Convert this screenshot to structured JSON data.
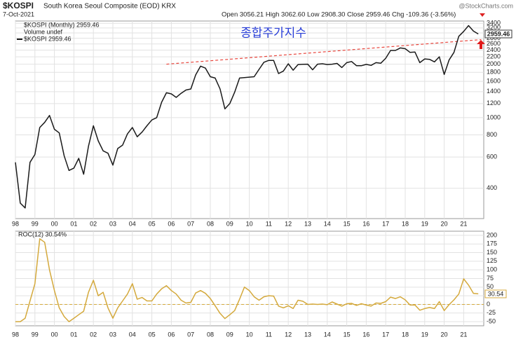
{
  "header": {
    "symbol": "$KOSPI",
    "description": "South Korea Seoul Composite (EOD) KRX",
    "date": "7-Oct-2021",
    "quote": "Open 3056.21 High 3062.60 Low 2908.30 Close 2959.46 Chg -109.36 (-3.56%)",
    "source": "@StockCharts.com",
    "legend_main": "$KOSPI (Monthly) 2959.46",
    "legend_volume": "Volume undef",
    "legend_line": "$KOSPI 2959.46",
    "annotation": "종합주가지수",
    "price_tag": "2959.46",
    "roc_legend": "ROC(12) 30.54%",
    "roc_tag": "30.54"
  },
  "chart_data": [
    {
      "type": "line",
      "color": "#1a1a1a",
      "log_scale": true,
      "grid": true,
      "xlim": [
        1998,
        2022.03
      ],
      "ylim": [
        270,
        3500
      ],
      "x": [
        1998,
        1998.25,
        1998.5,
        1998.75,
        1999,
        1999.25,
        1999.5,
        1999.75,
        2000,
        2000.25,
        2000.5,
        2000.75,
        2001,
        2001.25,
        2001.5,
        2001.75,
        2002,
        2002.25,
        2002.5,
        2002.75,
        2003,
        2003.25,
        2003.5,
        2003.75,
        2004,
        2004.25,
        2004.5,
        2004.75,
        2005,
        2005.25,
        2005.5,
        2005.75,
        2006,
        2006.25,
        2006.5,
        2006.75,
        2007,
        2007.25,
        2007.5,
        2007.75,
        2008,
        2008.25,
        2008.5,
        2008.75,
        2009,
        2009.25,
        2009.5,
        2009.75,
        2010,
        2010.25,
        2010.5,
        2010.75,
        2011,
        2011.25,
        2011.5,
        2011.75,
        2012,
        2012.25,
        2012.5,
        2012.75,
        2013,
        2013.25,
        2013.5,
        2013.75,
        2014,
        2014.25,
        2014.5,
        2014.75,
        2015,
        2015.25,
        2015.5,
        2015.75,
        2016,
        2016.25,
        2016.5,
        2016.75,
        2017,
        2017.25,
        2017.5,
        2017.75,
        2018,
        2018.25,
        2018.5,
        2018.75,
        2019,
        2019.25,
        2019.5,
        2019.75,
        2020,
        2020.25,
        2020.5,
        2020.75,
        2021,
        2021.25,
        2021.5,
        2021.75
      ],
      "values": [
        560,
        330,
        310,
        560,
        620,
        880,
        940,
        1028,
        860,
        820,
        610,
        504,
        520,
        590,
        480,
        690,
        900,
        740,
        650,
        630,
        540,
        670,
        700,
        810,
        880,
        780,
        830,
        900,
        970,
        1000,
        1220,
        1380,
        1360,
        1300,
        1370,
        1430,
        1450,
        1740,
        1950,
        1900,
        1700,
        1670,
        1450,
        1120,
        1200,
        1390,
        1670,
        1680,
        1690,
        1700,
        1870,
        2050,
        2100,
        2100,
        1770,
        1830,
        2010,
        1850,
        1990,
        1997,
        2000,
        1860,
        2000,
        2010,
        1990,
        2000,
        2020,
        1915,
        2040,
        2070,
        1960,
        1960,
        1995,
        1970,
        2040,
        2026,
        2160,
        2390,
        2390,
        2470,
        2445,
        2330,
        2340,
        2040,
        2140,
        2130,
        2060,
        2200,
        1750,
        2110,
        2330,
        2870,
        3060,
        3300,
        3070,
        2959.46
      ],
      "trendline": {
        "x": [
          2005.75,
          2021.9
        ],
        "y": [
          2000,
          2750
        ],
        "color": "#e8453c"
      },
      "yticks": [
        400,
        600,
        800,
        1000,
        1200,
        1400,
        1600,
        1800,
        2000,
        2200,
        2400,
        2600,
        2800,
        3000,
        3200,
        3400
      ],
      "xticks": [
        {
          "value": 1998,
          "label": "98"
        },
        {
          "value": 1999,
          "label": "99"
        },
        {
          "value": 2000,
          "label": "00"
        },
        {
          "value": 2001,
          "label": "01"
        },
        {
          "value": 2002,
          "label": "02"
        },
        {
          "value": 2003,
          "label": "03"
        },
        {
          "value": 2004,
          "label": "04"
        },
        {
          "value": 2005,
          "label": "05"
        },
        {
          "value": 2006,
          "label": "06"
        },
        {
          "value": 2007,
          "label": "07"
        },
        {
          "value": 2008,
          "label": "08"
        },
        {
          "value": 2009,
          "label": "09"
        },
        {
          "value": 2010,
          "label": "10"
        },
        {
          "value": 2011,
          "label": "11"
        },
        {
          "value": 2012,
          "label": "12"
        },
        {
          "value": 2013,
          "label": "13"
        },
        {
          "value": 2014,
          "label": "14"
        },
        {
          "value": 2015,
          "label": "15"
        },
        {
          "value": 2016,
          "label": "16"
        },
        {
          "value": 2017,
          "label": "17"
        },
        {
          "value": 2018,
          "label": "18"
        },
        {
          "value": 2019,
          "label": "19"
        },
        {
          "value": 2020,
          "label": "20"
        },
        {
          "value": 2021,
          "label": "21"
        }
      ]
    },
    {
      "type": "line",
      "color": "#d4a93c",
      "log_scale": false,
      "grid": true,
      "zero_line": true,
      "xlim": [
        1998,
        2022.03
      ],
      "ylim": [
        -62,
        212
      ],
      "x": [
        1998,
        1998.25,
        1998.5,
        1998.75,
        1999,
        1999.25,
        1999.5,
        1999.75,
        2000,
        2000.25,
        2000.5,
        2000.75,
        2001,
        2001.25,
        2001.5,
        2001.75,
        2002,
        2002.25,
        2002.5,
        2002.75,
        2003,
        2003.25,
        2003.5,
        2003.75,
        2004,
        2004.25,
        2004.5,
        2004.75,
        2005,
        2005.25,
        2005.5,
        2005.75,
        2006,
        2006.25,
        2006.5,
        2006.75,
        2007,
        2007.25,
        2007.5,
        2007.75,
        2008,
        2008.25,
        2008.5,
        2008.75,
        2009,
        2009.25,
        2009.5,
        2009.75,
        2010,
        2010.25,
        2010.5,
        2010.75,
        2011,
        2011.25,
        2011.5,
        2011.75,
        2012,
        2012.25,
        2012.5,
        2012.75,
        2013,
        2013.25,
        2013.5,
        2013.75,
        2014,
        2014.25,
        2014.5,
        2014.75,
        2015,
        2015.25,
        2015.5,
        2015.75,
        2016,
        2016.25,
        2016.5,
        2016.75,
        2017,
        2017.25,
        2017.5,
        2017.75,
        2018,
        2018.25,
        2018.5,
        2018.75,
        2019,
        2019.25,
        2019.5,
        2019.75,
        2020,
        2020.25,
        2020.5,
        2020.75,
        2021,
        2021.25,
        2021.5,
        2021.75
      ],
      "values": [
        -50,
        -50,
        -40,
        10,
        60,
        190,
        180,
        100,
        40,
        -10,
        -35,
        -50,
        -40,
        -30,
        -20,
        35,
        70,
        25,
        35,
        -10,
        -40,
        -10,
        10,
        30,
        60,
        15,
        20,
        10,
        10,
        30,
        45,
        54,
        40,
        30,
        12,
        4,
        6,
        33,
        40,
        32,
        17,
        -4,
        -26,
        -41,
        -30,
        -18,
        15,
        50,
        40,
        22,
        12,
        22,
        25,
        24,
        -5,
        -10,
        -4,
        -12,
        12,
        9,
        0,
        1,
        0,
        1,
        -1,
        7,
        1,
        -5,
        2,
        3,
        -3,
        2,
        -2,
        -5,
        4,
        3,
        8,
        21,
        17,
        22,
        13,
        -2,
        -2,
        -17,
        -12,
        -9,
        -12,
        8,
        -18,
        -1,
        13,
        30,
        74,
        56,
        32,
        30.54
      ],
      "yticks": [
        -50,
        -25,
        0,
        25,
        50,
        75,
        100,
        125,
        150,
        175,
        200
      ],
      "xticks": [
        {
          "value": 1998,
          "label": "98"
        },
        {
          "value": 1999,
          "label": "99"
        },
        {
          "value": 2000,
          "label": "00"
        },
        {
          "value": 2001,
          "label": "01"
        },
        {
          "value": 2002,
          "label": "02"
        },
        {
          "value": 2003,
          "label": "03"
        },
        {
          "value": 2004,
          "label": "04"
        },
        {
          "value": 2005,
          "label": "05"
        },
        {
          "value": 2006,
          "label": "06"
        },
        {
          "value": 2007,
          "label": "07"
        },
        {
          "value": 2008,
          "label": "08"
        },
        {
          "value": 2009,
          "label": "09"
        },
        {
          "value": 2010,
          "label": "10"
        },
        {
          "value": 2011,
          "label": "11"
        },
        {
          "value": 2012,
          "label": "12"
        },
        {
          "value": 2013,
          "label": "13"
        },
        {
          "value": 2014,
          "label": "14"
        },
        {
          "value": 2015,
          "label": "15"
        },
        {
          "value": 2016,
          "label": "16"
        },
        {
          "value": 2017,
          "label": "17"
        },
        {
          "value": 2018,
          "label": "18"
        },
        {
          "value": 2019,
          "label": "19"
        },
        {
          "value": 2020,
          "label": "20"
        },
        {
          "value": 2021,
          "label": "21"
        }
      ]
    }
  ]
}
